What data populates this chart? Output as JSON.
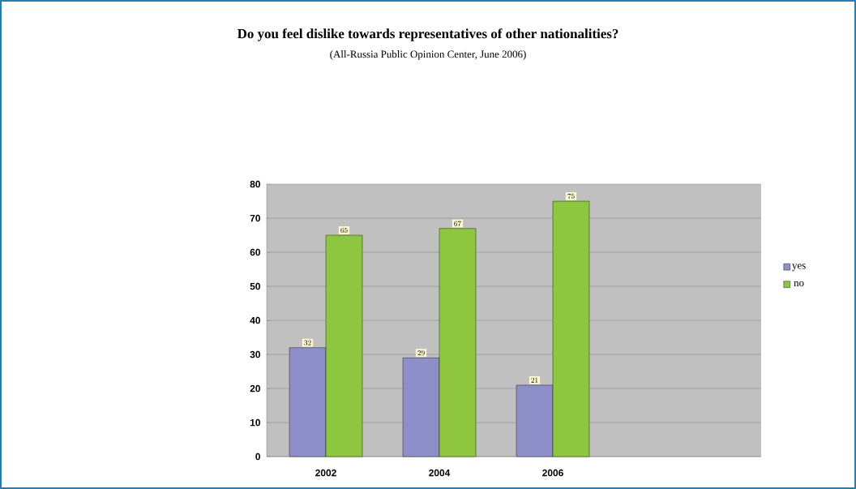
{
  "chart_data": {
    "type": "bar",
    "title": "Do you feel dislike towards representatives of other nationalities?",
    "subtitle": "(All-Russia Public Opinion Center, June 2006)",
    "categories": [
      "2002",
      "2004",
      "2006",
      null
    ],
    "series": [
      {
        "name": "yes",
        "color": "#8e8fc8",
        "values": [
          32,
          29,
          21,
          null
        ]
      },
      {
        "name": "no",
        "color": "#8dc63f",
        "values": [
          65,
          67,
          75,
          null
        ]
      }
    ],
    "ylim": [
      0,
      80
    ],
    "yticks": [
      0,
      10,
      20,
      30,
      40,
      50,
      60,
      70,
      80
    ],
    "grid": "y",
    "legend": "right",
    "data_labels": true
  }
}
